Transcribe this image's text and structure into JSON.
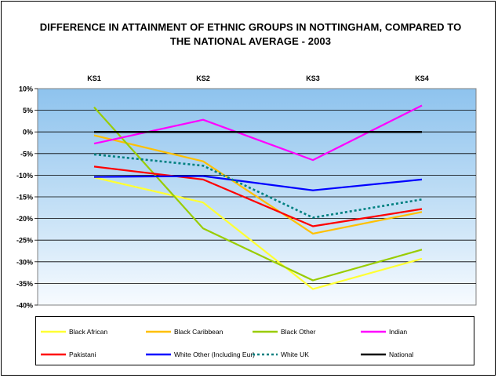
{
  "chart_data": {
    "type": "line",
    "title_lines": [
      "DIFFERENCE IN ATTAINMENT OF ETHNIC GROUPS IN NOTTINGHAM, COMPARED TO",
      "THE NATIONAL AVERAGE - 2003"
    ],
    "categories": [
      "KS1",
      "KS2",
      "KS3",
      "KS4"
    ],
    "x_axis_position": "top",
    "ylim": [
      -40,
      10
    ],
    "y_ticks": [
      "10%",
      "5%",
      "0%",
      "-5%",
      "-10%",
      "-15%",
      "-20%",
      "-25%",
      "-30%",
      "-35%",
      "-40%"
    ],
    "y_tick_values": [
      10,
      5,
      0,
      -5,
      -10,
      -15,
      -20,
      -25,
      -30,
      -35,
      -40
    ],
    "grid": true,
    "plot_background": "gradient-blue",
    "legend_placement": "bottom",
    "series": [
      {
        "name": "Black African",
        "color": "#ffff33",
        "dashed": false,
        "values": [
          -10.5,
          -16.3,
          -36.3,
          -29.3
        ]
      },
      {
        "name": "Black Caribbean",
        "color": "#ffc000",
        "dashed": false,
        "values": [
          -0.8,
          -6.8,
          -23.5,
          -18.5
        ]
      },
      {
        "name": "Black Other",
        "color": "#99cc00",
        "dashed": false,
        "values": [
          5.7,
          -22.3,
          -34.3,
          -27.2
        ]
      },
      {
        "name": "Indian",
        "color": "#ff00ff",
        "dashed": false,
        "values": [
          -2.7,
          2.8,
          -6.5,
          6.1
        ]
      },
      {
        "name": "Pakistani",
        "color": "#ff0000",
        "dashed": false,
        "values": [
          -8.0,
          -11.0,
          -21.8,
          -17.8
        ]
      },
      {
        "name": "White Other (Including Eur)",
        "color": "#0000ff",
        "dashed": false,
        "values": [
          -10.4,
          -10.2,
          -13.5,
          -11.0
        ]
      },
      {
        "name": "White UK",
        "color": "#008080",
        "dashed": true,
        "values": [
          -5.2,
          -7.8,
          -19.8,
          -15.6
        ]
      },
      {
        "name": "National",
        "color": "#000000",
        "dashed": false,
        "values": [
          0,
          0,
          0,
          0
        ]
      }
    ]
  }
}
